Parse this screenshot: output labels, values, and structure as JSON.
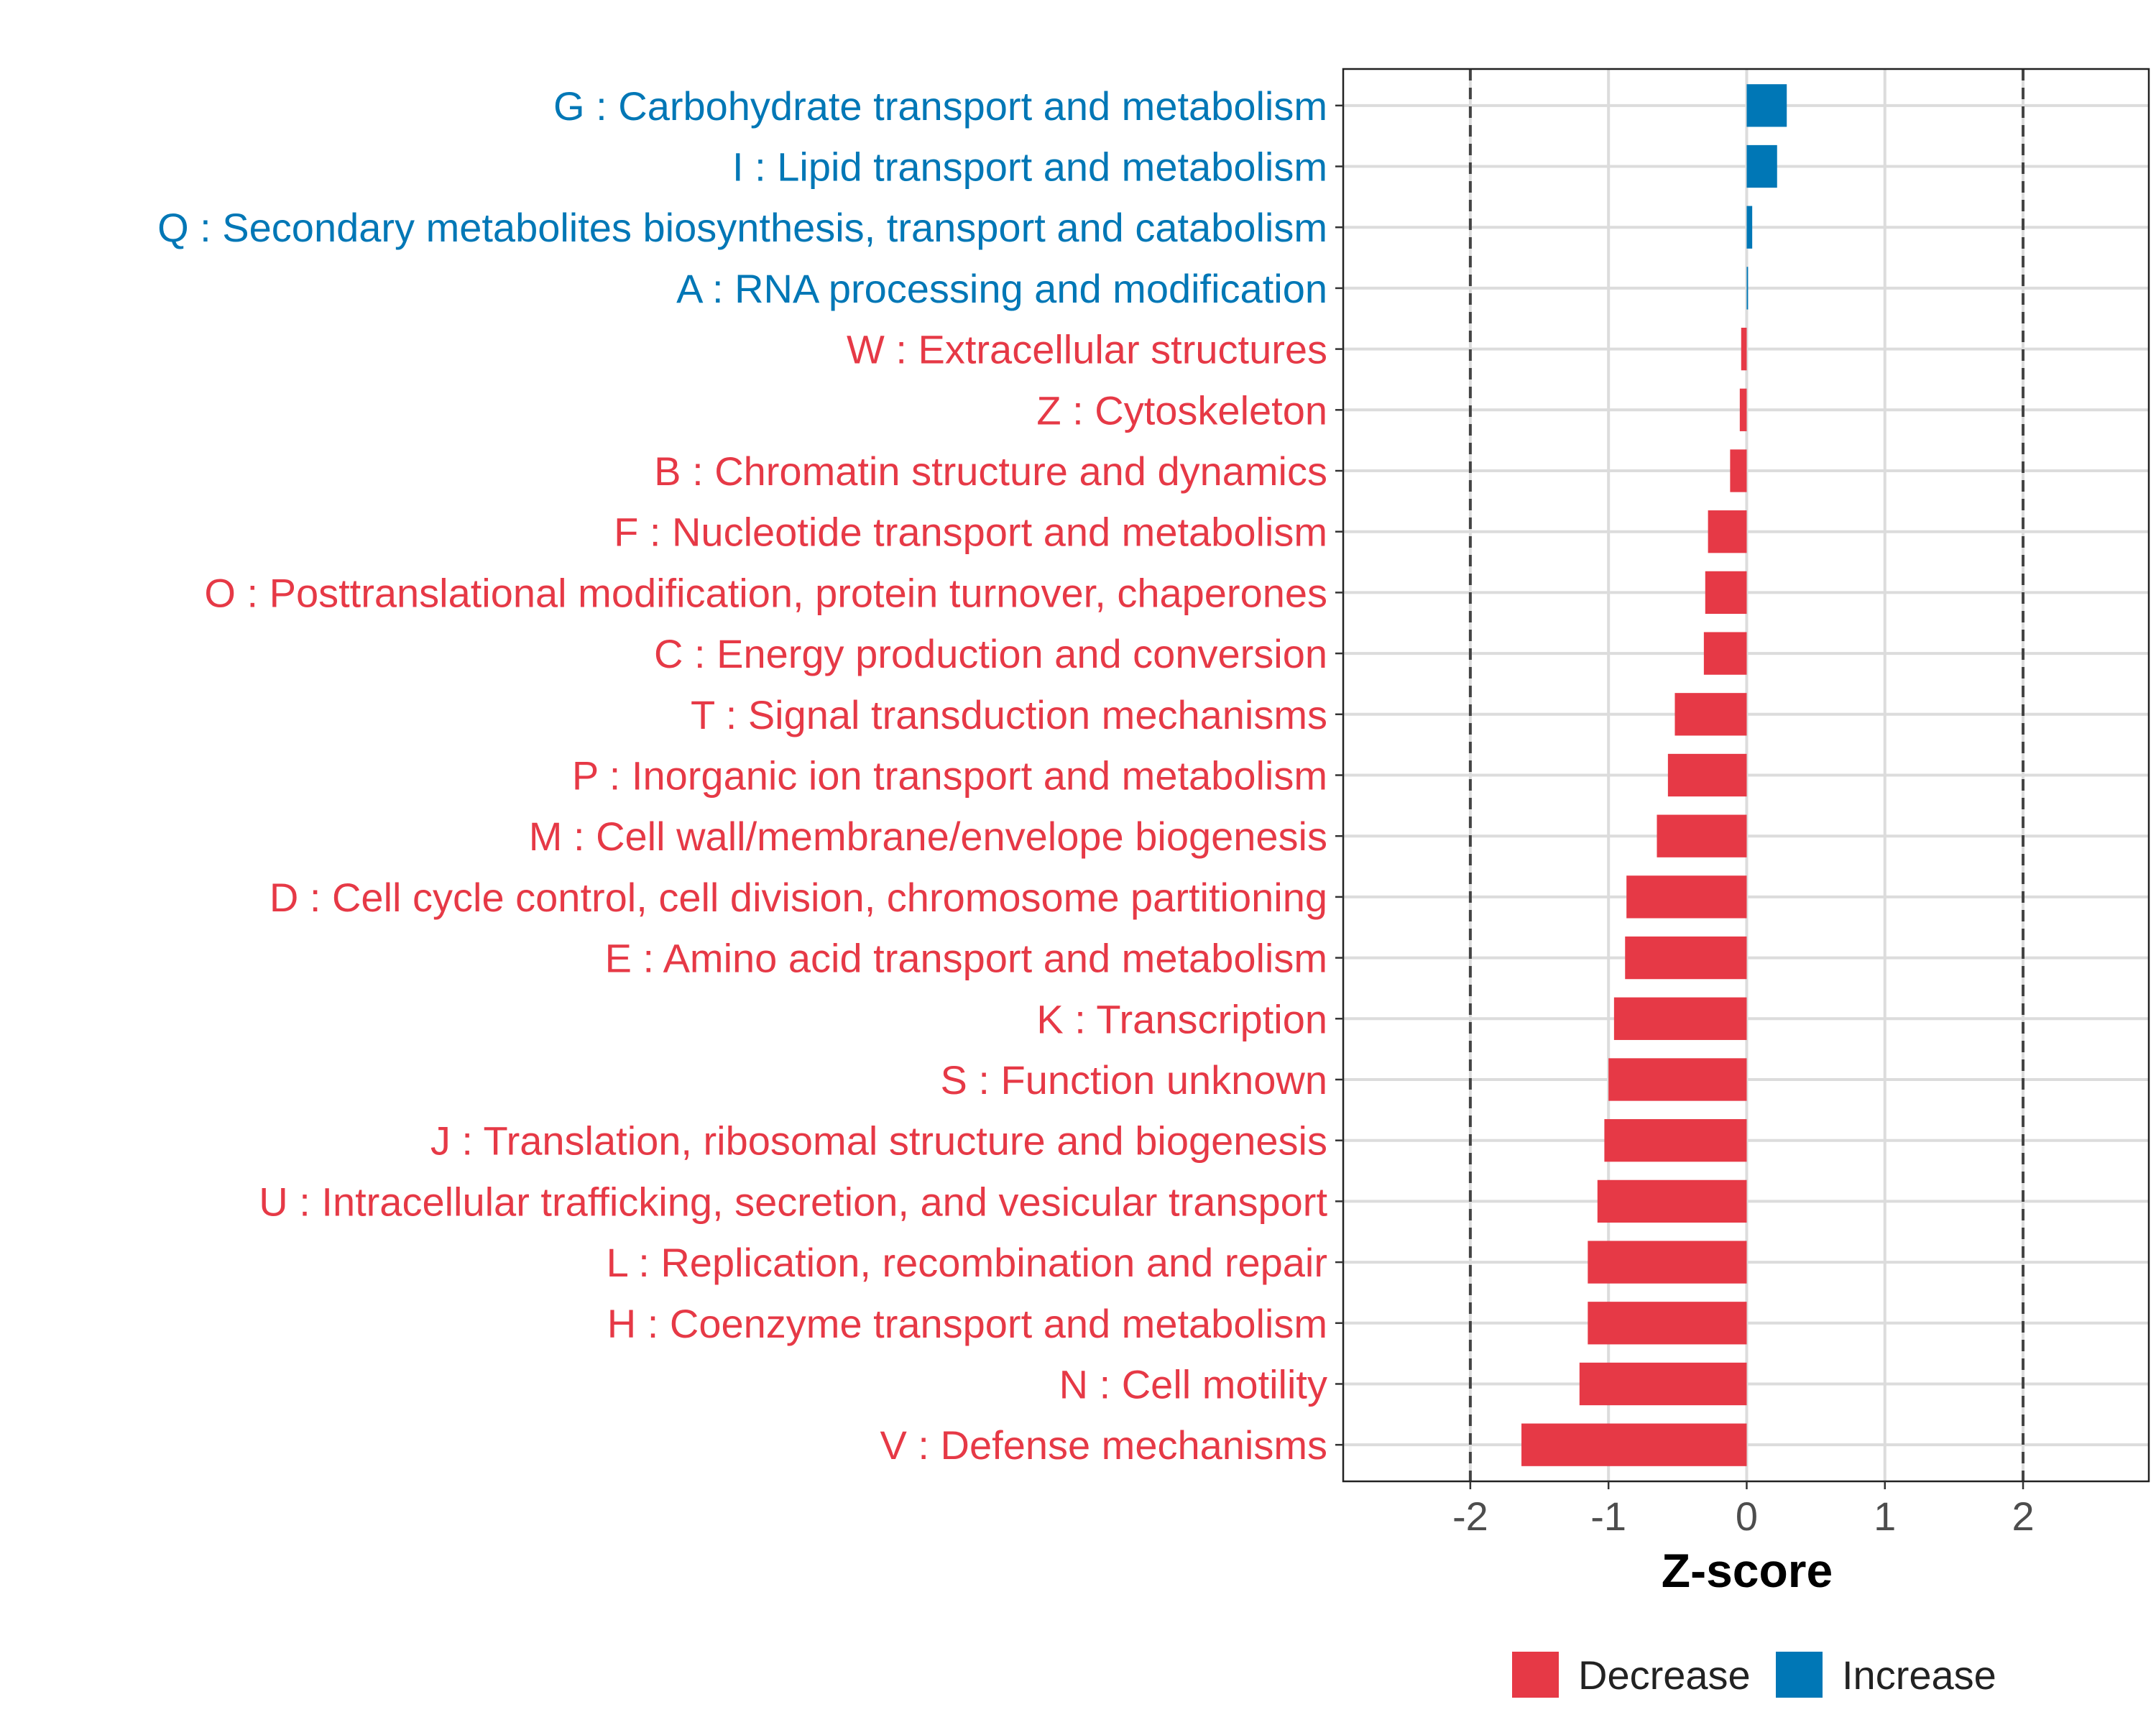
{
  "chart_data": {
    "type": "bar",
    "orientation": "horizontal",
    "title": "",
    "xlabel": "Z-score",
    "ylabel": "",
    "xlim": [
      -2.92,
      2.91
    ],
    "xticks": [
      -2,
      -1,
      0,
      1,
      2
    ],
    "xtick_labels": [
      "-2",
      "-1",
      "0",
      "1",
      "2"
    ],
    "reference_lines": [
      -2,
      2
    ],
    "grid": true,
    "categories": [
      "G : Carbohydrate transport and metabolism",
      "I : Lipid transport and metabolism",
      "Q : Secondary metabolites biosynthesis, transport and catabolism",
      "A : RNA processing and modification",
      "W : Extracellular structures",
      "Z : Cytoskeleton",
      "B : Chromatin structure and dynamics",
      "F : Nucleotide transport and metabolism",
      "O : Posttranslational modification, protein turnover, chaperones",
      "C : Energy production and conversion",
      "T : Signal transduction mechanisms",
      "P : Inorganic ion transport and metabolism",
      "M : Cell wall/membrane/envelope biogenesis",
      "D : Cell cycle control, cell division, chromosome partitioning",
      "E : Amino acid transport and metabolism",
      "K : Transcription",
      "S : Function unknown",
      "J : Translation, ribosomal structure and biogenesis",
      "U : Intracellular trafficking, secretion, and vesicular transport",
      "L : Replication, recombination and repair",
      "H : Coenzyme transport and metabolism",
      "N : Cell motility",
      "V : Defense mechanisms"
    ],
    "values": [
      0.29,
      0.22,
      0.04,
      0.01,
      -0.04,
      -0.05,
      -0.12,
      -0.28,
      -0.3,
      -0.31,
      -0.52,
      -0.57,
      -0.65,
      -0.87,
      -0.88,
      -0.96,
      -1.0,
      -1.03,
      -1.08,
      -1.15,
      -1.15,
      -1.21,
      -1.63
    ],
    "legend": {
      "position": "bottom",
      "entries": [
        {
          "label": "Decrease",
          "color": "#E63946"
        },
        {
          "label": "Increase",
          "color": "#0077B6"
        }
      ]
    },
    "colors": {
      "decrease": "#E63946",
      "increase": "#0077B6"
    }
  }
}
